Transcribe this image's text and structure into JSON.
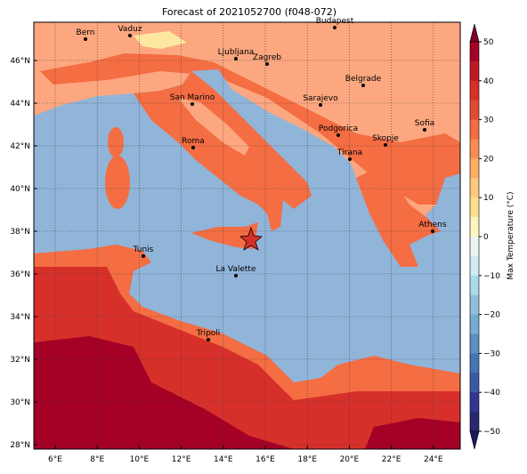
{
  "title": "Forecast of 2021052700 (f048-072)",
  "lat_labels": [
    "46°N",
    "44°N",
    "42°N",
    "40°N",
    "38°N",
    "36°N",
    "34°N",
    "32°N",
    "30°N",
    "28°N"
  ],
  "lon_labels": [
    "6°E",
    "8°E",
    "10°E",
    "12°E",
    "14°E",
    "16°E",
    "18°E",
    "20°E",
    "22°E",
    "24°E"
  ],
  "cities": [
    "Bern",
    "Vaduz",
    "Budapest",
    "Ljubljana",
    "Zagreb",
    "Belgrade",
    "Sarajevo",
    "San Marino",
    "Sofia",
    "Podgorica",
    "Skopje",
    "Roma",
    "Tirana",
    "Athens",
    "Tunis",
    "La Valette",
    "Tripoli"
  ],
  "colorbar": {
    "label": "Max Temperature (°C)",
    "ticks": [
      "50",
      "40",
      "30",
      "20",
      "10",
      "0",
      "−10",
      "−20",
      "−30",
      "−40",
      "−50"
    ]
  }
}
